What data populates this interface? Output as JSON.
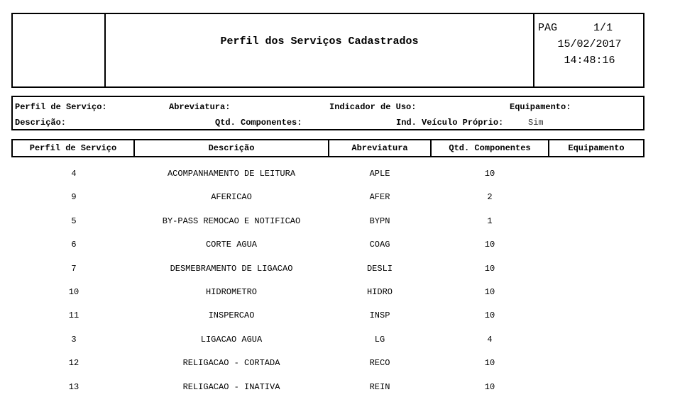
{
  "header": {
    "title": "Perfil dos Serviços Cadastrados",
    "page_label": "PAG",
    "page": "1/1",
    "date": "15/02/2017",
    "time": "14:48:16"
  },
  "filters": {
    "perfil": "Perfil de Serviço:",
    "abreviatura": "Abreviatura:",
    "indicador": "Indicador de Uso:",
    "equipamento": "Equipamento:",
    "descricao": "Descrição:",
    "qtd": "Qtd. Componentes:",
    "veiculo": "Ind. Veículo Próprio:",
    "veiculo_value": "Sim"
  },
  "columns": [
    "Perfil de Serviço",
    "Descrição",
    "Abreviatura",
    "Qtd. Componentes",
    "Equipamento"
  ],
  "rows": [
    [
      "4",
      "ACOMPANHAMENTO DE LEITURA",
      "APLE",
      "10",
      ""
    ],
    [
      "9",
      "AFERICAO",
      "AFER",
      "2",
      ""
    ],
    [
      "5",
      "BY-PASS REMOCAO E NOTIFICAO",
      "BYPN",
      "1",
      ""
    ],
    [
      "6",
      "CORTE AGUA",
      "COAG",
      "10",
      ""
    ],
    [
      "7",
      "DESMEBRAMENTO DE LIGACAO",
      "DESLI",
      "10",
      ""
    ],
    [
      "10",
      "HIDROMETRO",
      "HIDRO",
      "10",
      ""
    ],
    [
      "11",
      "INSPERCAO",
      "INSP",
      "10",
      ""
    ],
    [
      "3",
      "LIGACAO AGUA",
      "LG",
      "4",
      ""
    ],
    [
      "12",
      "RELIGACAO - CORTADA",
      "RECO",
      "10",
      ""
    ],
    [
      "13",
      "RELIGACAO - INATIVA",
      "REIN",
      "10",
      ""
    ]
  ]
}
